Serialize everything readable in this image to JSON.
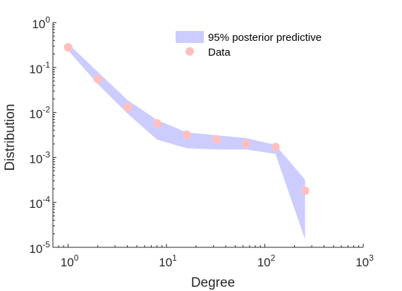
{
  "chart_data": {
    "type": "scatter",
    "xlabel": "Degree",
    "ylabel": "Distribution",
    "xscale": "log",
    "yscale": "log",
    "xlim": [
      0.7,
      1000
    ],
    "ylim": [
      1e-05,
      1
    ],
    "x_ticks": [
      {
        "base": "10",
        "exp": "0",
        "value": 1
      },
      {
        "base": "10",
        "exp": "1",
        "value": 10
      },
      {
        "base": "10",
        "exp": "2",
        "value": 100
      },
      {
        "base": "10",
        "exp": "3",
        "value": 1000
      }
    ],
    "y_ticks": [
      {
        "base": "10",
        "exp": "0",
        "value": 1
      },
      {
        "base": "10",
        "exp": "-1",
        "value": 0.1
      },
      {
        "base": "10",
        "exp": "-2",
        "value": 0.01
      },
      {
        "base": "10",
        "exp": "-3",
        "value": 0.001
      },
      {
        "base": "10",
        "exp": "-4",
        "value": 0.0001
      },
      {
        "base": "10",
        "exp": "-5",
        "value": 1e-05
      }
    ],
    "band": {
      "name": "95% posterior predictive",
      "color": "#ccccff",
      "x": [
        1,
        2,
        4,
        8,
        16,
        32,
        64,
        128,
        256
      ],
      "upper": [
        0.34,
        0.08,
        0.019,
        0.0068,
        0.0036,
        0.0031,
        0.0027,
        0.0019,
        0.00032
      ],
      "lower": [
        0.24,
        0.043,
        0.0095,
        0.0025,
        0.0016,
        0.0015,
        0.0015,
        0.0012,
        1.5e-05
      ]
    },
    "series": [
      {
        "name": "Data",
        "color": "#ffbfbf",
        "x": [
          1,
          2,
          4,
          8,
          16,
          32,
          64,
          128,
          256
        ],
        "y": [
          0.28,
          0.055,
          0.013,
          0.0057,
          0.0032,
          0.0025,
          0.002,
          0.0017,
          0.00018
        ]
      }
    ],
    "legend": "top-right",
    "grid": false
  }
}
